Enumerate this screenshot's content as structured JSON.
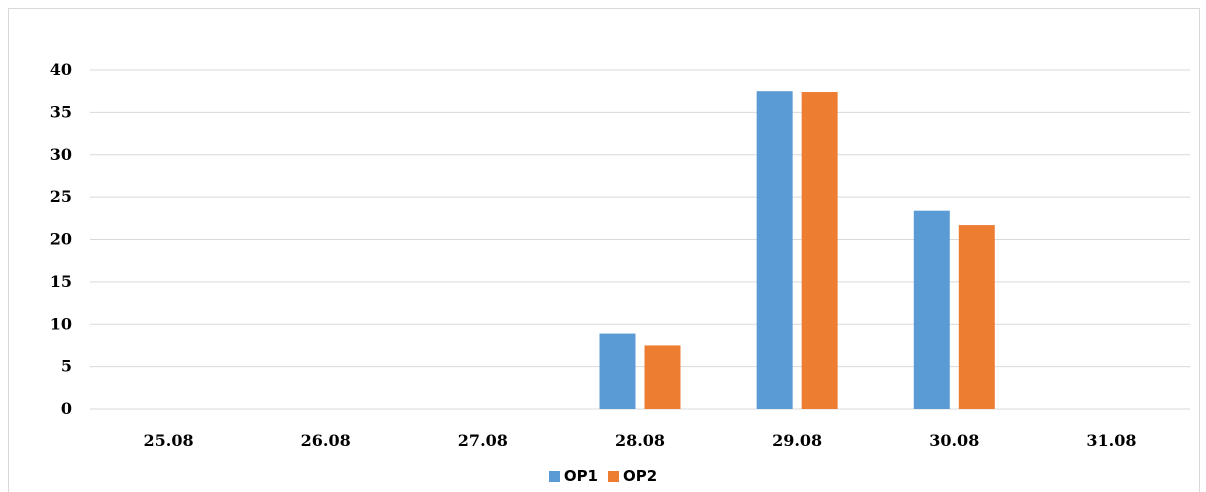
{
  "chart_data": {
    "type": "bar",
    "categories": [
      "25.08",
      "26.08",
      "27.08",
      "28.08",
      "29.08",
      "30.08",
      "31.08"
    ],
    "series": [
      {
        "name": "OP1",
        "color": "#5b9bd5",
        "values": [
          0,
          0,
          0,
          8.9,
          37.5,
          23.4,
          0
        ]
      },
      {
        "name": "OP2",
        "color": "#ed7d31",
        "values": [
          0,
          0,
          0,
          7.5,
          37.4,
          21.7,
          0
        ]
      }
    ],
    "title": "",
    "xlabel": "",
    "ylabel": "",
    "ylim": [
      0,
      40
    ],
    "yticks": [
      0,
      5,
      10,
      15,
      20,
      25,
      30,
      35,
      40
    ],
    "grid": true,
    "legend_position": "bottom",
    "gridline_color": "#d9d9d9"
  }
}
